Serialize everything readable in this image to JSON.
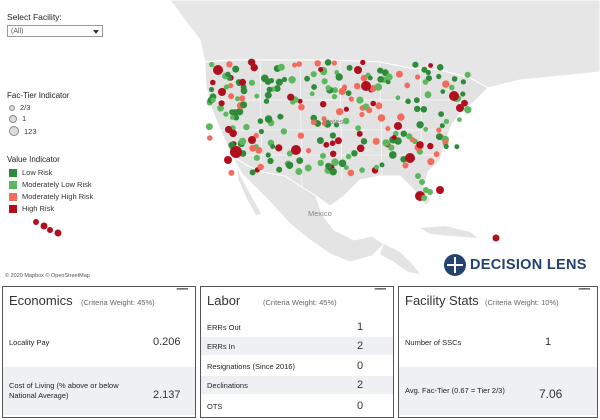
{
  "filters": {
    "facility_label": "Select Facility:",
    "facility_value": "(All)"
  },
  "legend": {
    "tier_title": "Fac-Tier Indicator",
    "tier_items": [
      "2/3",
      "1",
      "123"
    ],
    "value_title": "Value Indicator",
    "value_items": [
      {
        "label": "Low Risk",
        "color": "#2e8b3a"
      },
      {
        "label": "Moderately Low Risk",
        "color": "#5cb85c"
      },
      {
        "label": "Moderately High Risk",
        "color": "#f26b5b"
      },
      {
        "label": "High Risk",
        "color": "#b0101e"
      }
    ]
  },
  "map": {
    "labels": {
      "states": "States",
      "mexico": "Mexico"
    },
    "attribution": "© 2020 Mapbox © OpenStreetMap",
    "colors": {
      "land": "#e8e8e8",
      "border": "#ffffff",
      "water": "#ffffff"
    }
  },
  "logo": {
    "text": "DECISION LENS",
    "color": "#23436d"
  },
  "panels": {
    "economics": {
      "title": "Economics",
      "weight": "(Criteria Weight: 45%)",
      "rows": [
        {
          "label": "Locality Pay",
          "value": "0.206"
        },
        {
          "label": "Cost of Living (% above or below National Average)",
          "value": "2.137"
        }
      ]
    },
    "labor": {
      "title": "Labor",
      "weight": "(Criteria Weight: 45%)",
      "rows": [
        {
          "label": "ERRs Out",
          "value": "1"
        },
        {
          "label": "ERRs In",
          "value": "2"
        },
        {
          "label": "Resignations (Since 2016)",
          "value": "0"
        },
        {
          "label": "Declinations",
          "value": "2"
        },
        {
          "label": "OTS",
          "value": "0"
        }
      ]
    },
    "facility_stats": {
      "title": "Facility Stats",
      "weight": "(Criteria Weight: 10%)",
      "rows": [
        {
          "label": "Number of SSCs",
          "value": "1"
        },
        {
          "label": "Avg. Fac-Tier (0.67 = Tier 2/3)",
          "value": "7.06"
        }
      ]
    }
  }
}
